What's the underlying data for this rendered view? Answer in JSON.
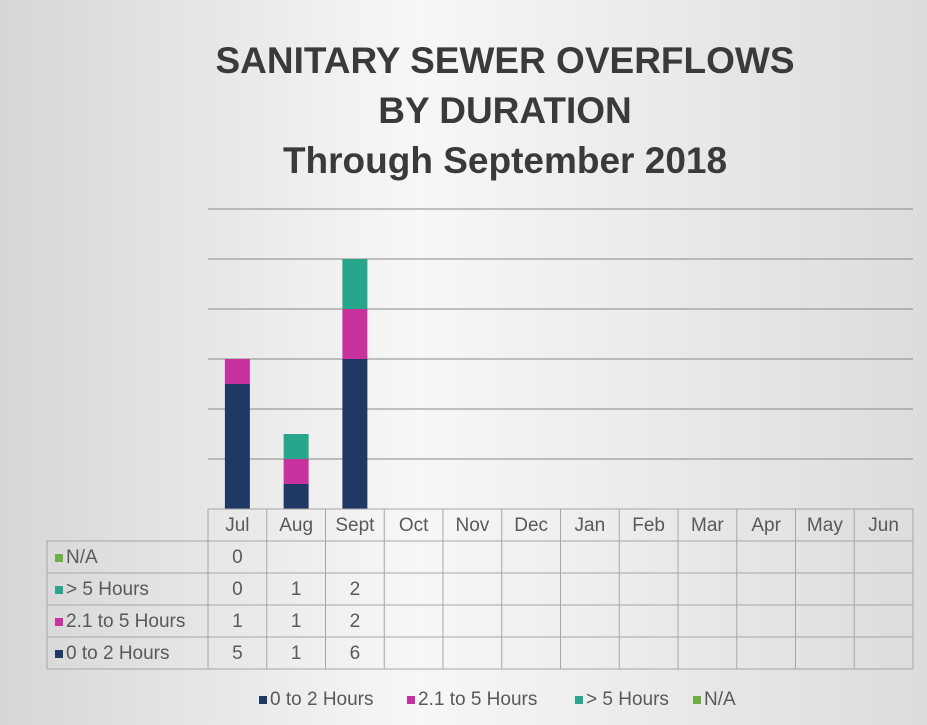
{
  "chart_data": {
    "type": "stacked_bar",
    "title": [
      "SANITARY SEWER OVERFLOWS",
      "BY DURATION",
      "Through September 2018"
    ],
    "categories": [
      "Jul",
      "Aug",
      "Sept",
      "Oct",
      "Nov",
      "Dec",
      "Jan",
      "Feb",
      "Mar",
      "Apr",
      "May",
      "Jun"
    ],
    "series": [
      {
        "name": "0 to 2 Hours",
        "color": "#203864",
        "values": [
          5,
          1,
          6,
          null,
          null,
          null,
          null,
          null,
          null,
          null,
          null,
          null
        ]
      },
      {
        "name": "2.1 to 5 Hours",
        "color": "#c8329e",
        "values": [
          1,
          1,
          2,
          null,
          null,
          null,
          null,
          null,
          null,
          null,
          null,
          null
        ]
      },
      {
        "name": "> 5 Hours",
        "color": "#27a68c",
        "values": [
          0,
          1,
          2,
          null,
          null,
          null,
          null,
          null,
          null,
          null,
          null,
          null
        ]
      },
      {
        "name": "N/A",
        "color": "#70ad47",
        "values": [
          0,
          null,
          null,
          null,
          null,
          null,
          null,
          null,
          null,
          null,
          null,
          null
        ]
      }
    ],
    "ylim": [
      0,
      12
    ],
    "yticks": [
      0,
      2,
      4,
      6,
      8,
      10,
      12
    ],
    "grid": true,
    "legend": "bottom"
  }
}
